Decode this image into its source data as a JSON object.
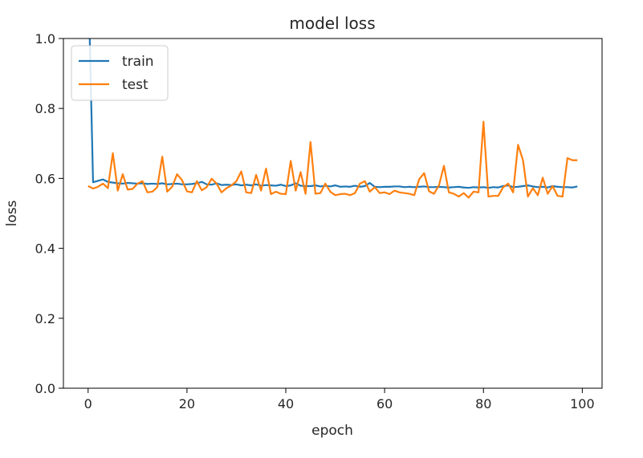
{
  "chart_data": {
    "type": "line",
    "title": "model loss",
    "xlabel": "epoch",
    "ylabel": "loss",
    "xlim": [
      -5,
      104
    ],
    "ylim": [
      0.0,
      1.0
    ],
    "xticks": [
      0,
      20,
      40,
      60,
      80,
      100
    ],
    "xtick_labels": [
      "0",
      "20",
      "40",
      "60",
      "80",
      "100"
    ],
    "yticks": [
      0.0,
      0.2,
      0.4,
      0.6,
      0.8,
      1.0
    ],
    "ytick_labels": [
      "0.0",
      "0.2",
      "0.4",
      "0.6",
      "0.8",
      "1.0"
    ],
    "grid": false,
    "legend_position": "upper-left",
    "series": [
      {
        "name": "train",
        "color": "#1f77b4",
        "x": [
          0,
          1,
          2,
          3,
          4,
          5,
          6,
          7,
          8,
          9,
          10,
          11,
          12,
          13,
          14,
          15,
          16,
          17,
          18,
          19,
          20,
          21,
          22,
          23,
          24,
          25,
          26,
          27,
          28,
          29,
          30,
          31,
          32,
          33,
          34,
          35,
          36,
          37,
          38,
          39,
          40,
          41,
          42,
          43,
          44,
          45,
          46,
          47,
          48,
          49,
          50,
          51,
          52,
          53,
          54,
          55,
          56,
          57,
          58,
          59,
          60,
          61,
          62,
          63,
          64,
          65,
          66,
          67,
          68,
          69,
          70,
          71,
          72,
          73,
          74,
          75,
          76,
          77,
          78,
          79,
          80,
          81,
          82,
          83,
          84,
          85,
          86,
          87,
          88,
          89,
          90,
          91,
          92,
          93,
          94,
          95,
          96,
          97,
          98,
          99
        ],
        "values": [
          1.2,
          0.589,
          0.593,
          0.597,
          0.59,
          0.588,
          0.586,
          0.585,
          0.587,
          0.586,
          0.585,
          0.586,
          0.584,
          0.585,
          0.584,
          0.586,
          0.583,
          0.584,
          0.585,
          0.583,
          0.583,
          0.584,
          0.586,
          0.59,
          0.583,
          0.582,
          0.586,
          0.581,
          0.582,
          0.581,
          0.583,
          0.58,
          0.582,
          0.58,
          0.583,
          0.579,
          0.581,
          0.58,
          0.579,
          0.582,
          0.578,
          0.58,
          0.586,
          0.579,
          0.578,
          0.578,
          0.58,
          0.577,
          0.579,
          0.577,
          0.58,
          0.576,
          0.577,
          0.576,
          0.579,
          0.576,
          0.578,
          0.587,
          0.576,
          0.575,
          0.576,
          0.576,
          0.577,
          0.577,
          0.575,
          0.576,
          0.575,
          0.576,
          0.577,
          0.575,
          0.575,
          0.576,
          0.575,
          0.574,
          0.575,
          0.576,
          0.574,
          0.573,
          0.575,
          0.574,
          0.575,
          0.573,
          0.575,
          0.574,
          0.578,
          0.58,
          0.575,
          0.576,
          0.578,
          0.58,
          0.577,
          0.575,
          0.576,
          0.574,
          0.578,
          0.576,
          0.575,
          0.575,
          0.574,
          0.577
        ]
      },
      {
        "name": "test",
        "color": "#ff7f0e",
        "x": [
          0,
          1,
          2,
          3,
          4,
          5,
          6,
          7,
          8,
          9,
          10,
          11,
          12,
          13,
          14,
          15,
          16,
          17,
          18,
          19,
          20,
          21,
          22,
          23,
          24,
          25,
          26,
          27,
          28,
          29,
          30,
          31,
          32,
          33,
          34,
          35,
          36,
          37,
          38,
          39,
          40,
          41,
          42,
          43,
          44,
          45,
          46,
          47,
          48,
          49,
          50,
          51,
          52,
          53,
          54,
          55,
          56,
          57,
          58,
          59,
          60,
          61,
          62,
          63,
          64,
          65,
          66,
          67,
          68,
          69,
          70,
          71,
          72,
          73,
          74,
          75,
          76,
          77,
          78,
          79,
          80,
          81,
          82,
          83,
          84,
          85,
          86,
          87,
          88,
          89,
          90,
          91,
          92,
          93,
          94,
          95,
          96,
          97,
          98,
          99
        ],
        "values": [
          0.578,
          0.571,
          0.576,
          0.585,
          0.572,
          0.672,
          0.565,
          0.612,
          0.568,
          0.57,
          0.585,
          0.592,
          0.56,
          0.562,
          0.575,
          0.662,
          0.562,
          0.576,
          0.612,
          0.595,
          0.563,
          0.56,
          0.592,
          0.566,
          0.575,
          0.599,
          0.585,
          0.56,
          0.572,
          0.58,
          0.592,
          0.62,
          0.56,
          0.558,
          0.61,
          0.565,
          0.628,
          0.555,
          0.562,
          0.556,
          0.555,
          0.65,
          0.565,
          0.618,
          0.556,
          0.704,
          0.556,
          0.558,
          0.585,
          0.562,
          0.552,
          0.555,
          0.556,
          0.552,
          0.558,
          0.585,
          0.592,
          0.562,
          0.575,
          0.558,
          0.56,
          0.555,
          0.565,
          0.56,
          0.558,
          0.556,
          0.552,
          0.598,
          0.615,
          0.563,
          0.556,
          0.58,
          0.636,
          0.56,
          0.556,
          0.548,
          0.558,
          0.545,
          0.562,
          0.56,
          0.762,
          0.548,
          0.55,
          0.55,
          0.575,
          0.585,
          0.56,
          0.696,
          0.652,
          0.548,
          0.572,
          0.552,
          0.602,
          0.556,
          0.578,
          0.55,
          0.548,
          0.658,
          0.652,
          0.652
        ]
      }
    ]
  }
}
